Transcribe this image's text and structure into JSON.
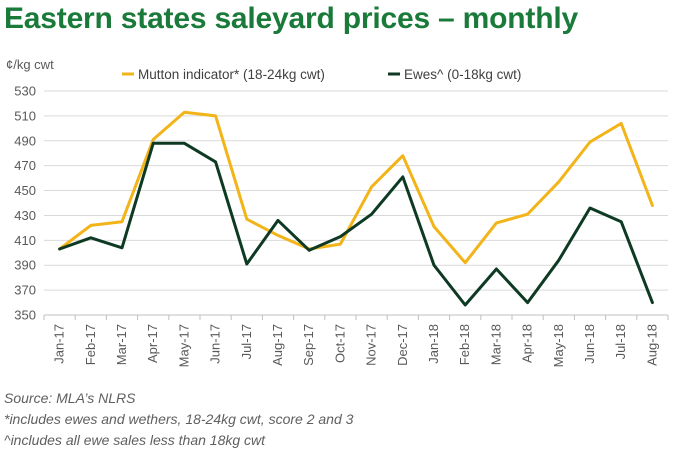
{
  "chart_data": {
    "type": "line",
    "title": "Eastern states saleyard prices – monthly",
    "ylabel": "¢/kg cwt",
    "xlabel": "",
    "categories": [
      "Jan-17",
      "Feb-17",
      "Mar-17",
      "Apr-17",
      "May-17",
      "Jun-17",
      "Jul-17",
      "Aug-17",
      "Sep-17",
      "Oct-17",
      "Nov-17",
      "Dec-17",
      "Jan-18",
      "Feb-18",
      "Mar-18",
      "Apr-18",
      "May-18",
      "Jun-18",
      "Jul-18",
      "Aug-18"
    ],
    "ylim": [
      350,
      530
    ],
    "yticks": [
      350,
      370,
      390,
      410,
      430,
      450,
      470,
      490,
      510,
      530
    ],
    "grid": true,
    "legend_position": "top",
    "series": [
      {
        "name": "Mutton indicator* (18-24kg cwt)",
        "color": "#f2b418",
        "values": [
          403,
          422,
          425,
          491,
          513,
          510,
          427,
          414,
          403,
          407,
          453,
          478,
          421,
          392,
          424,
          431,
          457,
          489,
          504,
          438
        ]
      },
      {
        "name": "Ewes^ (0-18kg cwt)",
        "color": "#0e3a24",
        "values": [
          403,
          412,
          404,
          488,
          488,
          473,
          391,
          426,
          402,
          413,
          431,
          461,
          390,
          358,
          387,
          360,
          394,
          436,
          425,
          360
        ]
      }
    ]
  },
  "notes": {
    "source": "Source: MLA’s NLRS",
    "footnote1": "*includes ewes and wethers, 18-24kg cwt, score 2 and 3",
    "footnote2": "^includes all ewe sales less than 18kg cwt"
  }
}
